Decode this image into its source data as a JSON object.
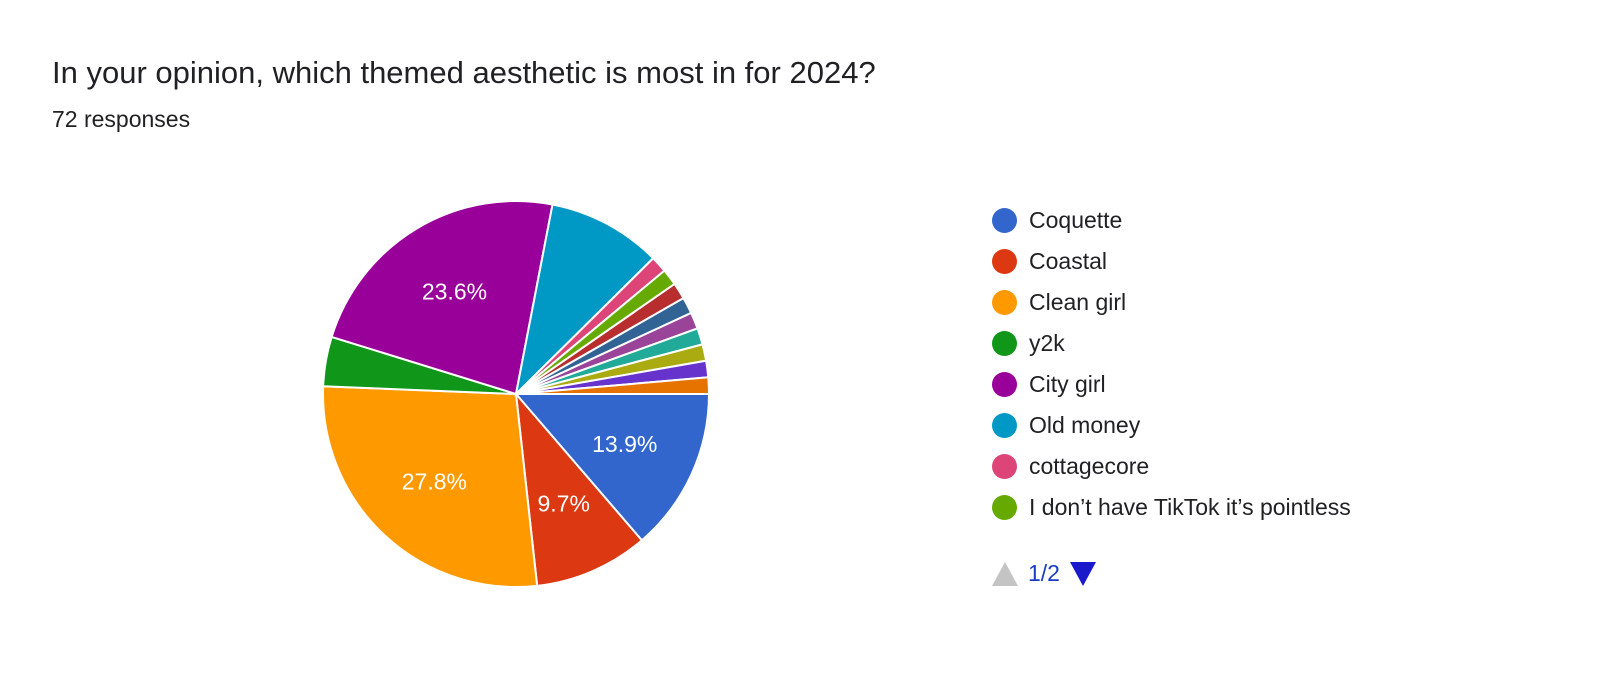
{
  "header": {
    "question": "In your opinion, which themed aesthetic is most in for 2024?",
    "responses": "72 responses"
  },
  "chart_data": {
    "type": "pie",
    "slices": [
      {
        "label": "Coquette",
        "value": 13.9,
        "color": "#3366cc",
        "shown_label": "13.9%"
      },
      {
        "label": "Coastal",
        "value": 9.7,
        "color": "#dc3912",
        "shown_label": "9.7%"
      },
      {
        "label": "Clean girl",
        "value": 27.8,
        "color": "#ff9900",
        "shown_label": "27.8%"
      },
      {
        "label": "y2k",
        "value": 4.2,
        "color": "#109618",
        "shown_label": ""
      },
      {
        "label": "City girl",
        "value": 23.6,
        "color": "#990099",
        "shown_label": "23.6%"
      },
      {
        "label": "Old money",
        "value": 9.7,
        "color": "#0099c6",
        "shown_label": ""
      },
      {
        "label": "cottagecore",
        "value": 1.4,
        "color": "#dd4477",
        "shown_label": ""
      },
      {
        "label": "I don’t have TikTok it’s pointless",
        "value": 1.4,
        "color": "#66aa00",
        "shown_label": ""
      },
      {
        "label": "",
        "value": 1.4,
        "color": "#b82e2e",
        "shown_label": ""
      },
      {
        "label": "",
        "value": 1.4,
        "color": "#316395",
        "shown_label": ""
      },
      {
        "label": "",
        "value": 1.4,
        "color": "#994499",
        "shown_label": ""
      },
      {
        "label": "",
        "value": 1.4,
        "color": "#22aa99",
        "shown_label": ""
      },
      {
        "label": "",
        "value": 1.4,
        "color": "#aaaa11",
        "shown_label": ""
      },
      {
        "label": "",
        "value": 1.4,
        "color": "#6633cc",
        "shown_label": ""
      },
      {
        "label": "",
        "value": 1.4,
        "color": "#e67300",
        "shown_label": ""
      }
    ],
    "legend": {
      "position": "right",
      "items": [
        {
          "label": "Coquette",
          "color": "#3366cc"
        },
        {
          "label": "Coastal",
          "color": "#dc3912"
        },
        {
          "label": "Clean girl",
          "color": "#ff9900"
        },
        {
          "label": "y2k",
          "color": "#109618"
        },
        {
          "label": "City girl",
          "color": "#990099"
        },
        {
          "label": "Old money",
          "color": "#0099c6"
        },
        {
          "label": "cottagecore",
          "color": "#dd4477"
        },
        {
          "label": "I don’t have TikTok it’s pointless",
          "color": "#66aa00"
        }
      ]
    }
  },
  "pager": {
    "label": "1/2",
    "up_icon": "triangle-up-icon",
    "down_icon": "triangle-down-icon"
  }
}
